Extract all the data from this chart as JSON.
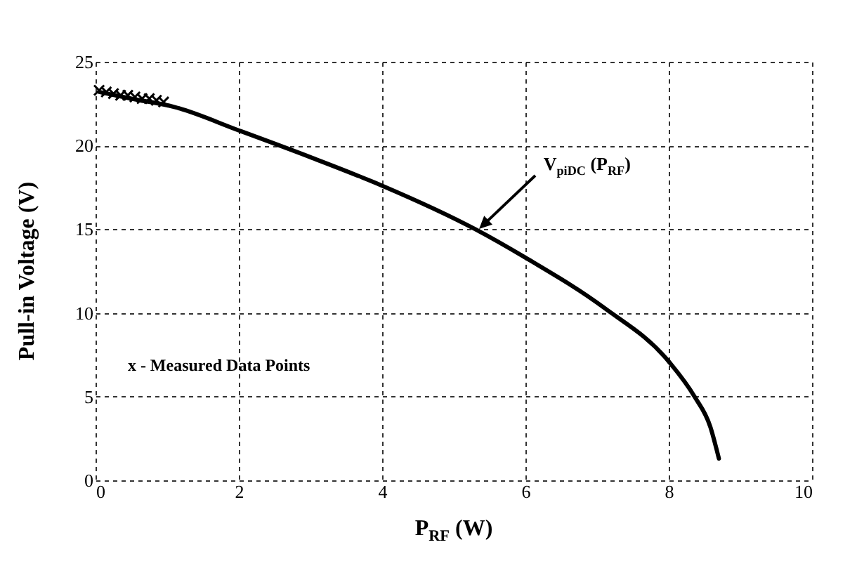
{
  "chart_data": {
    "type": "line",
    "xlabel": "P$_{RF}$ (W)",
    "ylabel": "Pull-in Voltage (V)",
    "xlim": [
      0,
      10
    ],
    "xticks": [
      0,
      2,
      4,
      6,
      8,
      10
    ],
    "ylim": [
      0,
      25
    ],
    "yticks": [
      0,
      5,
      10,
      15,
      20,
      25
    ],
    "grid": true,
    "series": [
      {
        "color": "#000000",
        "marker": "none",
        "x": [
          0.05,
          0.5,
          1.1,
          2.0,
          3.0,
          4.0,
          5.3,
          6.0,
          7.1,
          8.0,
          8.36,
          8.58,
          8.7
        ],
        "values": [
          23.2,
          22.8,
          22.3,
          20.9,
          19.3,
          17.6,
          15.0,
          13.3,
          10.3,
          7.1,
          5.0,
          3.2,
          1.3
        ]
      },
      {
        "type": "scatter",
        "color": "#000000",
        "marker": "cross",
        "x": [
          0.05,
          0.15,
          0.25,
          0.35,
          0.45,
          0.55,
          0.65,
          0.75,
          0.85,
          0.95
        ],
        "values": [
          23.3,
          23.2,
          23.1,
          23.0,
          23.0,
          22.9,
          22.8,
          22.8,
          22.7,
          22.6
        ]
      }
    ],
    "annotations": [
      {
        "text": "V$_{piDC}$ (P$_{RF}$)",
        "x": 5.35,
        "y": 15.0
      },
      "x - Measured Data Points"
    ]
  }
}
